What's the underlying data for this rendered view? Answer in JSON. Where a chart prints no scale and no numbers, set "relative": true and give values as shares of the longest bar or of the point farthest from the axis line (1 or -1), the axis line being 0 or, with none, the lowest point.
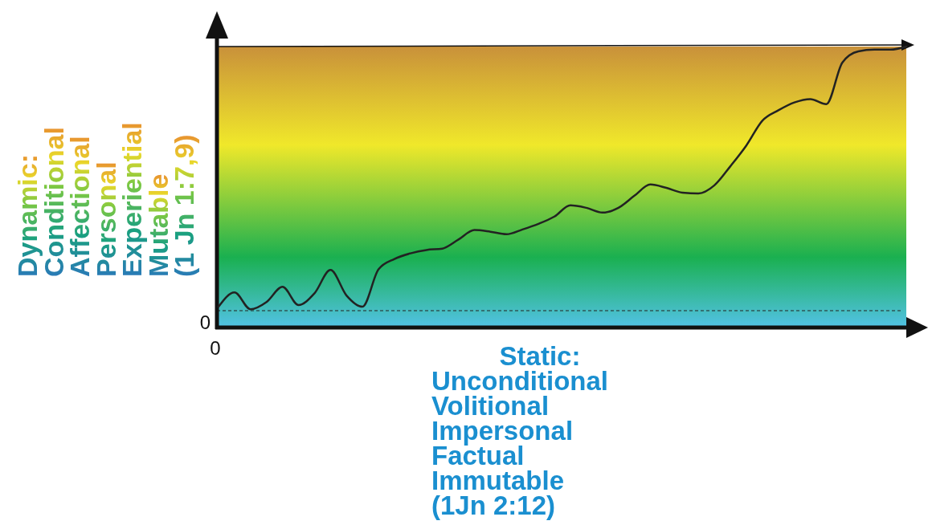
{
  "chart_data": {
    "type": "line",
    "relative": true,
    "categories": [
      null,
      null,
      null,
      null,
      null,
      null,
      null,
      null,
      null,
      null,
      null,
      null,
      null,
      null,
      null,
      null,
      null,
      null,
      null,
      null,
      null,
      null,
      null,
      null,
      null,
      null,
      null,
      null,
      null,
      null,
      null,
      null,
      null,
      null,
      null,
      null,
      null,
      null,
      null,
      null,
      null,
      null,
      null,
      null
    ],
    "series": [
      {
        "color": "#222222",
        "values": [
          0.074,
          0.125,
          0.065,
          0.091,
          0.145,
          0.08,
          0.122,
          0.205,
          0.114,
          0.074,
          0.207,
          0.244,
          0.264,
          0.276,
          0.281,
          0.313,
          0.347,
          0.341,
          0.332,
          0.349,
          0.369,
          0.395,
          0.435,
          0.426,
          0.409,
          0.426,
          0.469,
          0.509,
          0.497,
          0.48,
          0.477,
          0.506,
          0.574,
          0.648,
          0.736,
          0.773,
          0.801,
          0.813,
          0.795,
          0.943,
          0.983,
          0.989,
          0.989,
          1
        ]
      }
    ],
    "ylabel": "Dynamic:\nConditional\nAffectional\nPersonal\nExperiential\nMutable\n(1 Jn 1:7,9)",
    "xlabel": "Static:\nUnconditional\nVolitional\nImpersonal\nFactual\nImmutable\n(1Jn 2:12)",
    "ref_lines": [
      {
        "axis": "y",
        "value": 0.06,
        "color": "#222222",
        "line_style": "dashed"
      }
    ],
    "annotations": [
      "0",
      "0"
    ],
    "line_style": "solid"
  }
}
